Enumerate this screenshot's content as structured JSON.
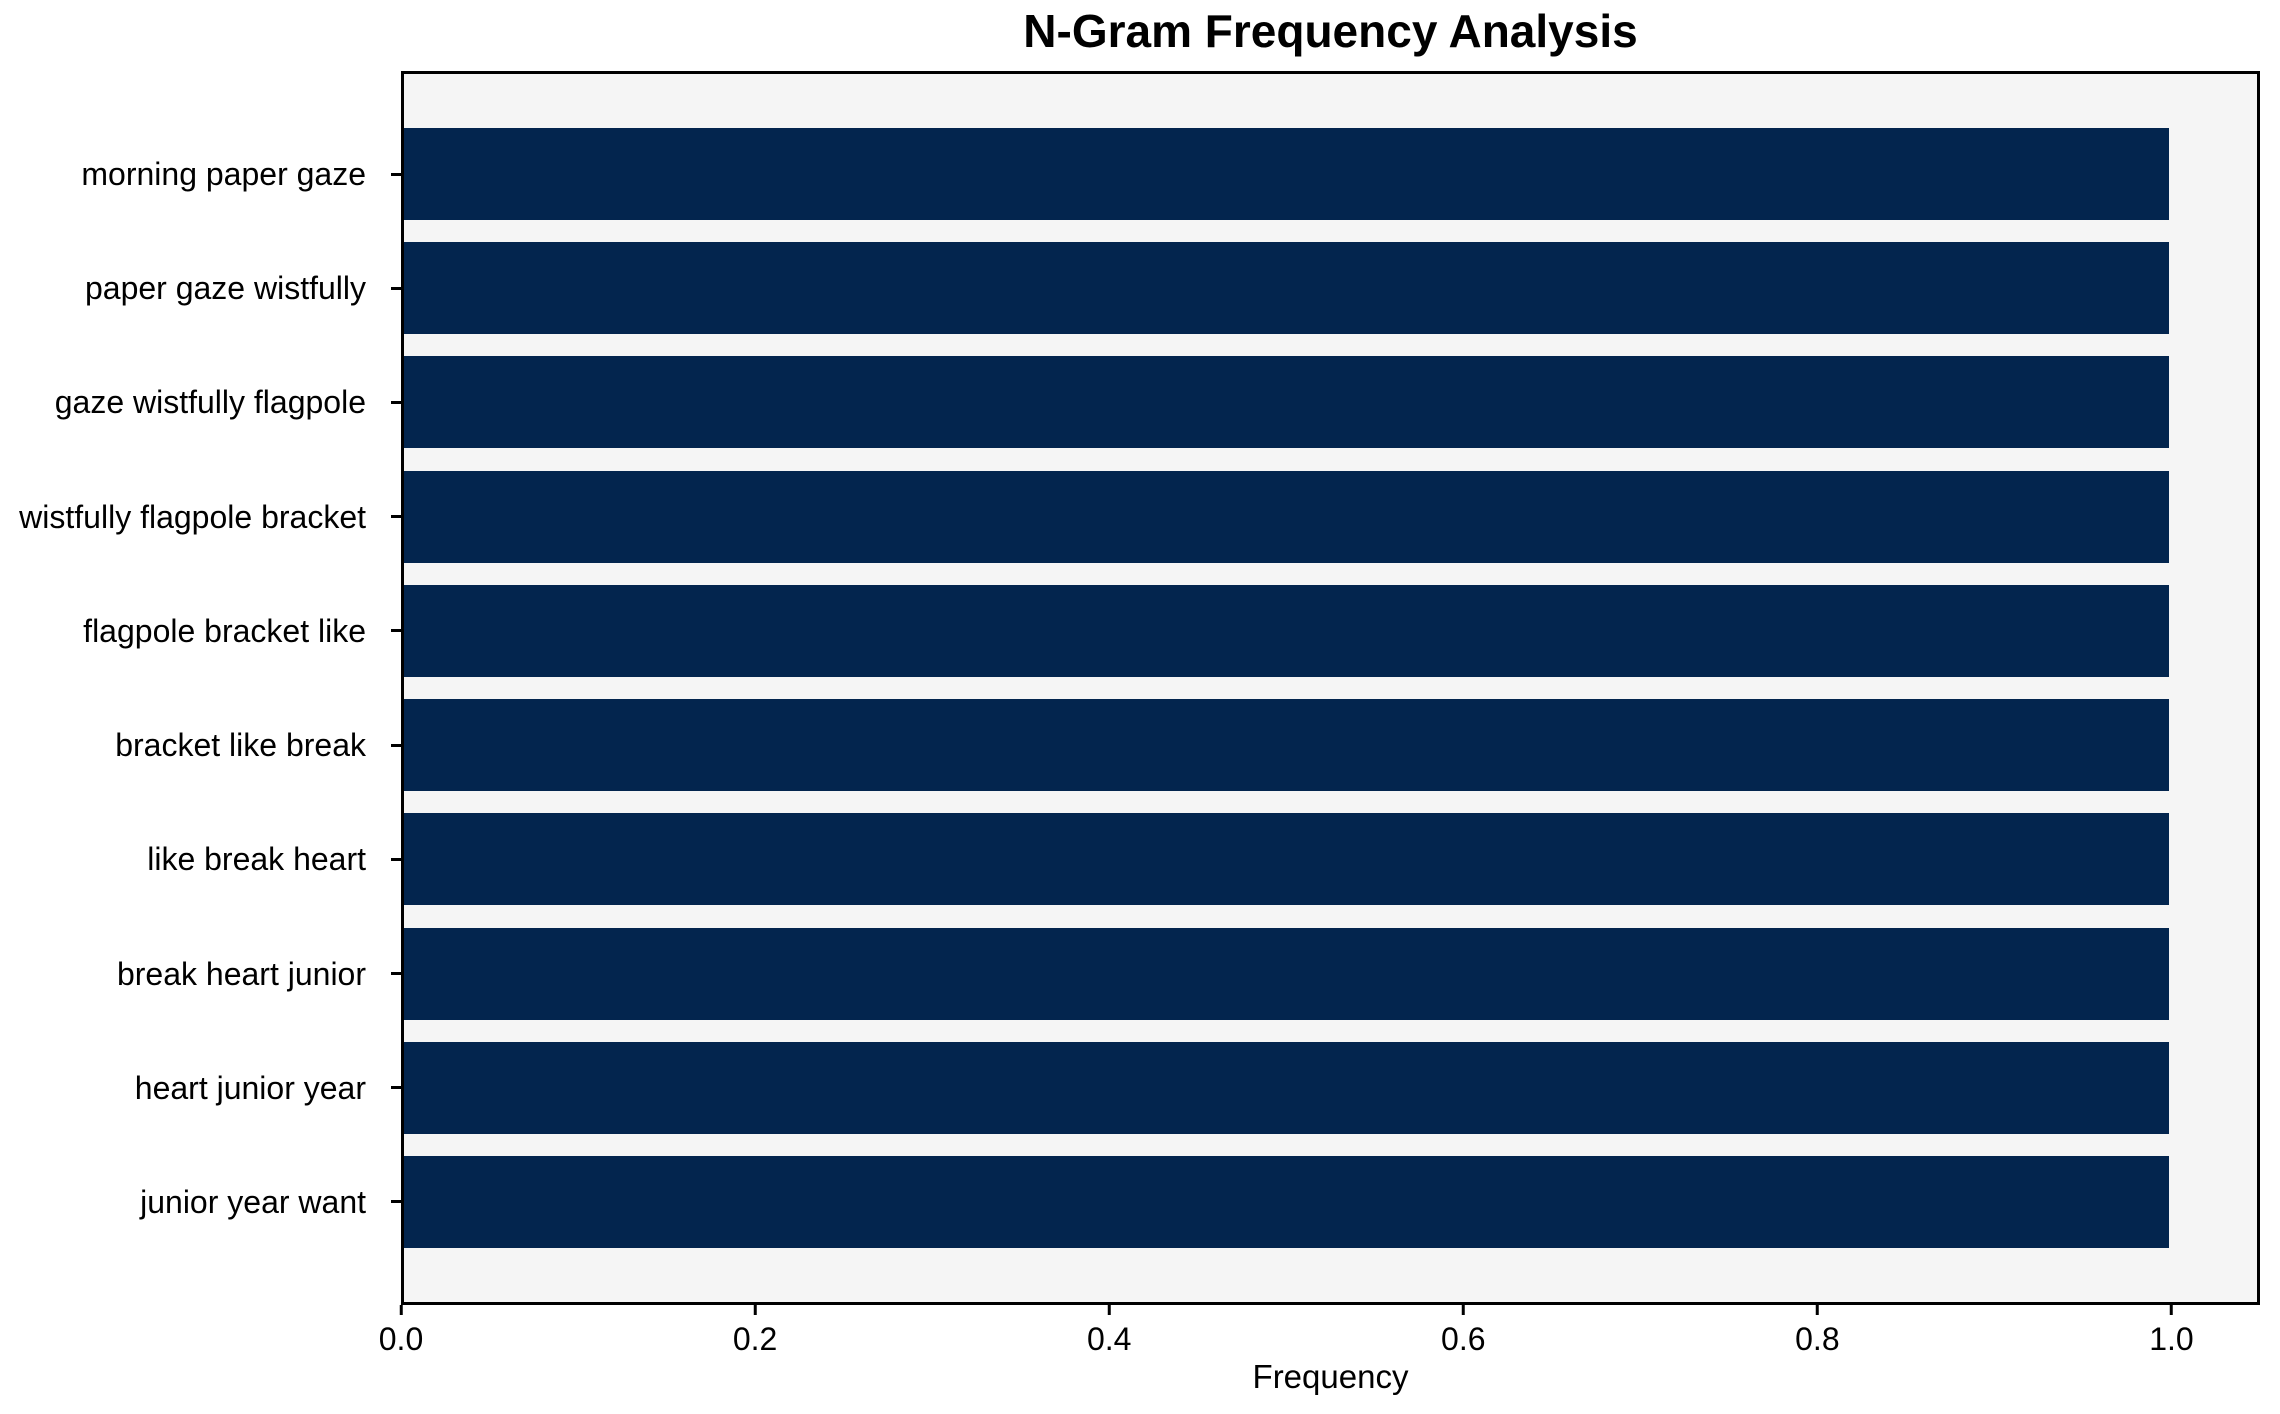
{
  "chart_data": {
    "type": "bar",
    "orientation": "horizontal",
    "title": "N-Gram Frequency Analysis",
    "xlabel": "Frequency",
    "categories": [
      "morning paper gaze",
      "paper gaze wistfully",
      "gaze wistfully flagpole",
      "wistfully flagpole bracket",
      "flagpole bracket like",
      "bracket like break",
      "like break heart",
      "break heart junior",
      "heart junior year",
      "junior year want"
    ],
    "values": [
      1.0,
      1.0,
      1.0,
      1.0,
      1.0,
      1.0,
      1.0,
      1.0,
      1.0,
      1.0
    ],
    "xlim": [
      0,
      1.05
    ],
    "xticks": [
      {
        "value": 0.0,
        "label": "0.0"
      },
      {
        "value": 0.2,
        "label": "0.2"
      },
      {
        "value": 0.4,
        "label": "0.4"
      },
      {
        "value": 0.6,
        "label": "0.6"
      },
      {
        "value": 0.8,
        "label": "0.8"
      },
      {
        "value": 1.0,
        "label": "1.0"
      }
    ],
    "grid": false,
    "legend_position": "none",
    "colors": {
      "bar": "#03254e",
      "plot_background": "#f5f5f5",
      "axis": "#000000",
      "text": "#000000"
    }
  }
}
